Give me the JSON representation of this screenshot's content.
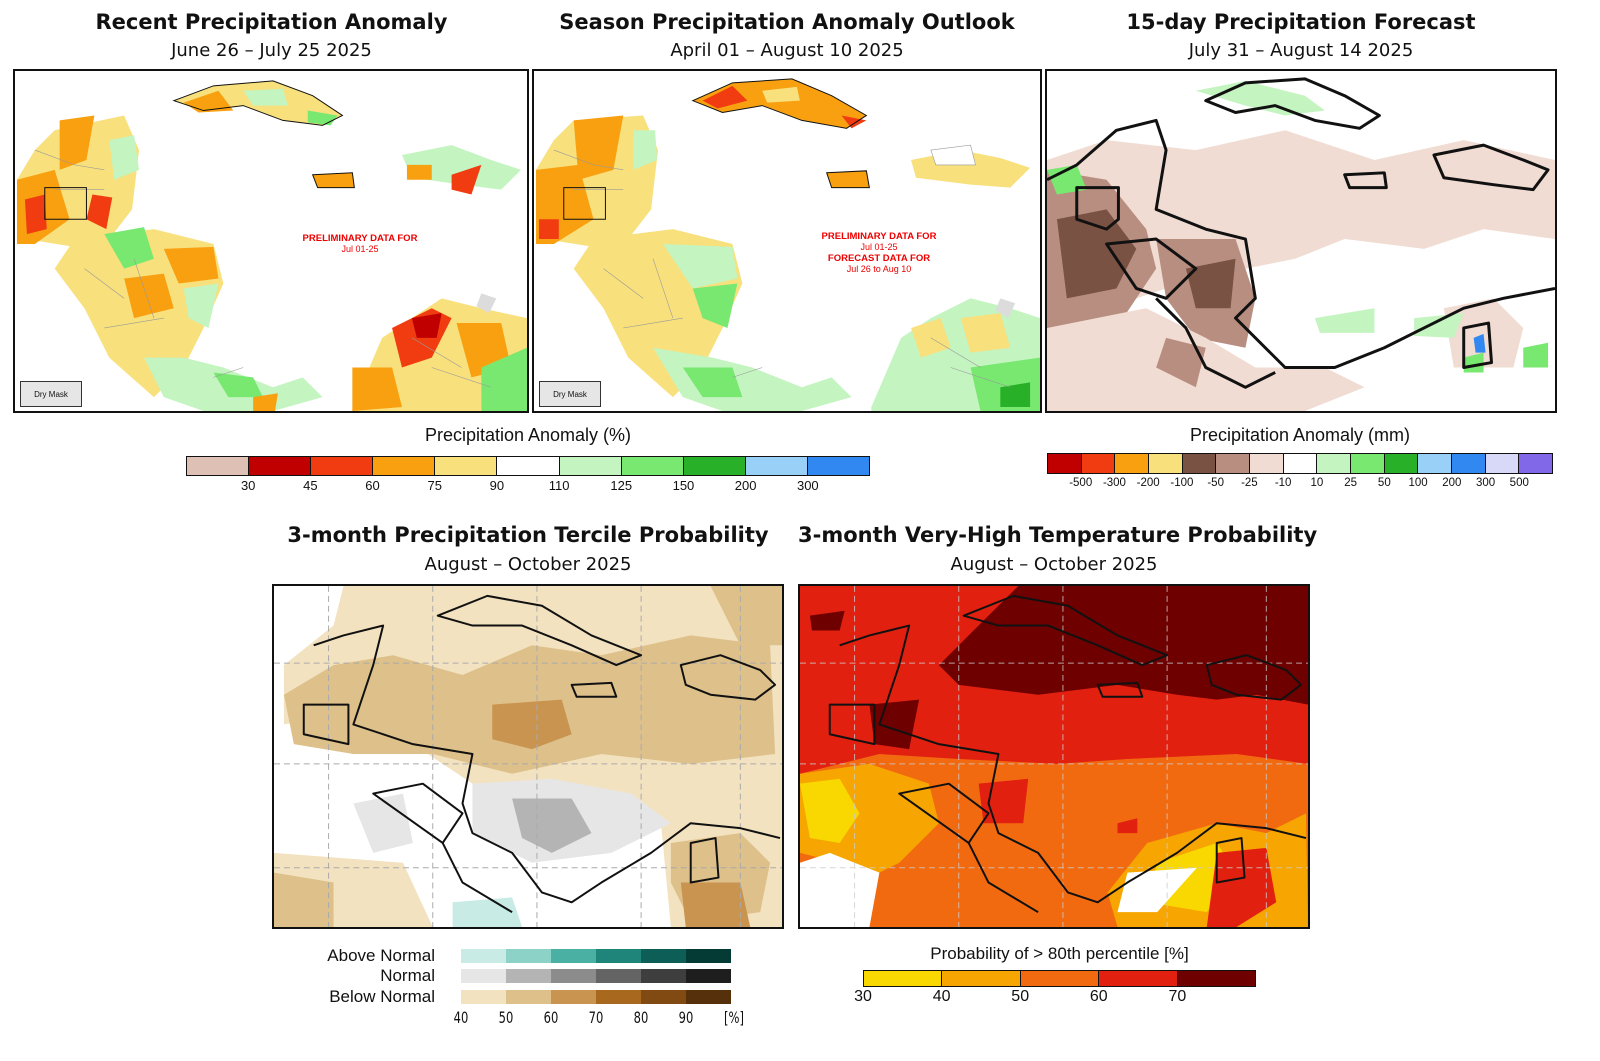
{
  "panels": {
    "recent": {
      "title": "Recent Precipitation Anomaly",
      "subtitle": "June 26 – July 25 2025",
      "prelim_line1": "PRELIMINARY DATA FOR",
      "prelim_line2": "Jul 01-25",
      "dry_mask": "Dry Mask"
    },
    "season": {
      "title": "Season Precipitation Anomaly Outlook",
      "subtitle": "April 01 – August 10 2025",
      "prelim_line1": "PRELIMINARY DATA FOR",
      "prelim_line2": "Jul 01-25",
      "forecast_line1": "FORECAST DATA FOR",
      "forecast_line2": "Jul 26 to Aug 10",
      "dry_mask": "Dry Mask"
    },
    "forecast15": {
      "title": "15-day Precipitation Forecast",
      "subtitle": "July 31 – August 14 2025"
    },
    "tercile": {
      "title": "3-month Precipitation Tercile Probability",
      "subtitle": "August – October 2025"
    },
    "temperature": {
      "title": "3-month Very-High Temperature Probability",
      "subtitle": "August – October 2025"
    }
  },
  "legend_pct": {
    "title": "Precipitation Anomaly (%)",
    "colors": [
      "#dfc0b4",
      "#c00000",
      "#f03c10",
      "#f8a010",
      "#f8e07c",
      "#ffffff",
      "#c4f4c0",
      "#78e870",
      "#28b028",
      "#98d0f8",
      "#3088f0"
    ],
    "ticks": [
      "30",
      "45",
      "60",
      "75",
      "90",
      "110",
      "125",
      "150",
      "200",
      "300"
    ]
  },
  "legend_mm": {
    "title": "Precipitation Anomaly (mm)",
    "colors": [
      "#c00000",
      "#f03c10",
      "#f8a010",
      "#f8e07c",
      "#7a5244",
      "#b88e80",
      "#f0dcd2",
      "#ffffff",
      "#c4f4c0",
      "#78e870",
      "#28b028",
      "#98d0f8",
      "#3088f0",
      "#d8d8f8",
      "#8068e8"
    ],
    "ticks": [
      "-500",
      "-300",
      "-200",
      "-100",
      "-50",
      "-25",
      "-10",
      "10",
      "25",
      "50",
      "100",
      "200",
      "300",
      "500"
    ]
  },
  "legend_tercile": {
    "rows": [
      {
        "label": "Above Normal",
        "colors": [
          "#c8ebe6",
          "#8cd2c6",
          "#4ab0a4",
          "#1f857b",
          "#0d5e56",
          "#053b35"
        ]
      },
      {
        "label": "Normal",
        "colors": [
          "#e6e6e6",
          "#b4b4b4",
          "#8c8c8c",
          "#646464",
          "#3e3e3e",
          "#1e1e1e"
        ]
      },
      {
        "label": "Below Normal",
        "colors": [
          "#f3e2c0",
          "#ddc08a",
          "#c89450",
          "#a8691e",
          "#814a12",
          "#55300a"
        ]
      }
    ],
    "ticks": [
      "40",
      "50",
      "60",
      "70",
      "80",
      "90",
      "[%]"
    ]
  },
  "legend_temp": {
    "title": "Probability of > 80th percentile [%]",
    "colors": [
      "#f8d800",
      "#f7a500",
      "#f26a10",
      "#e22010",
      "#6e0000"
    ],
    "ticks": [
      "30",
      "40",
      "50",
      "60",
      "70"
    ]
  }
}
